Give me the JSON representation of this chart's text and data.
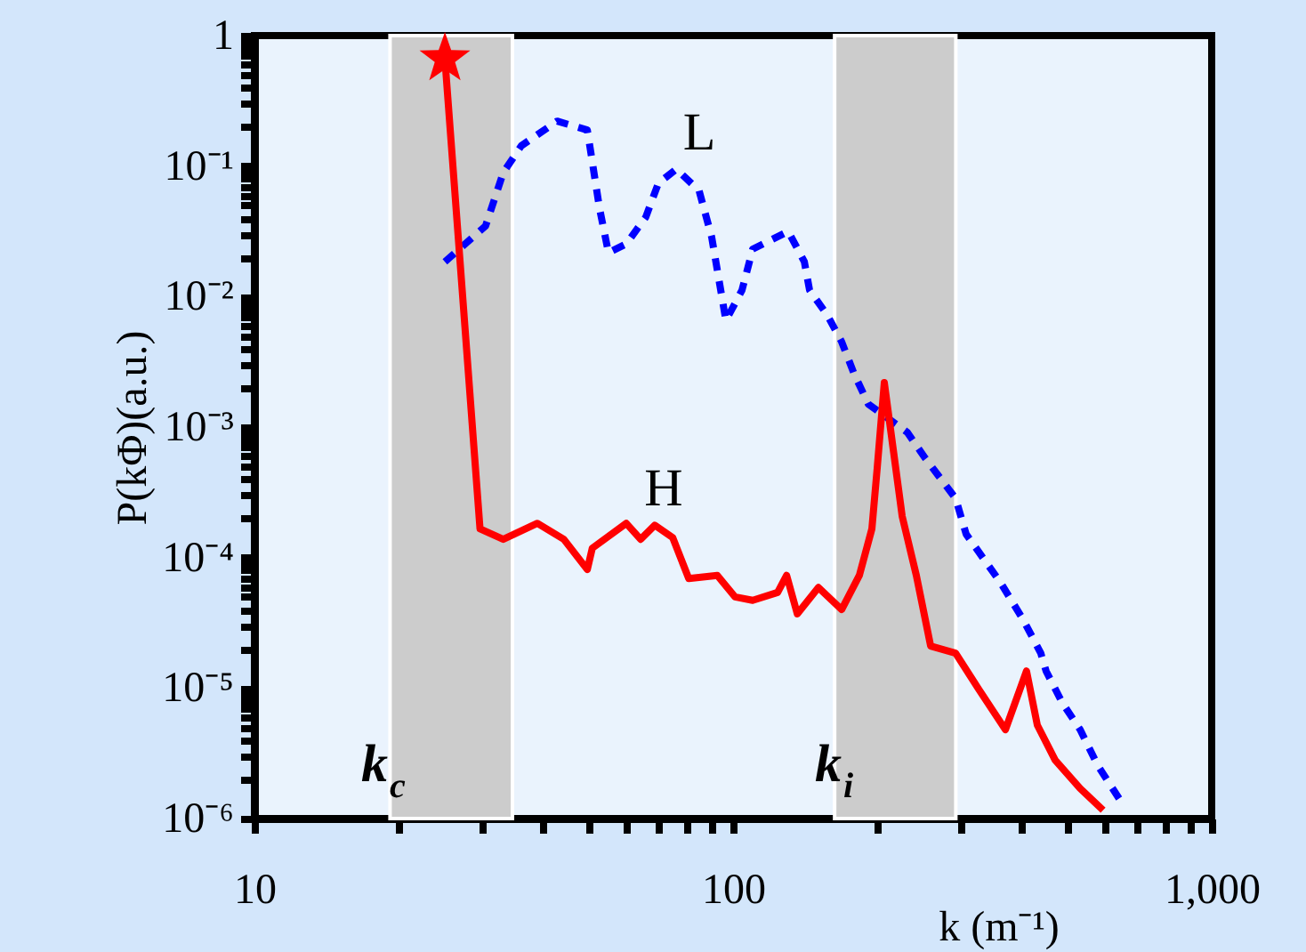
{
  "chart_data": {
    "type": "line",
    "xlabel": "k (m⁻¹)",
    "ylabel": "P(kΦ)(a.u.)",
    "log": "xy",
    "grid": false,
    "legend": false,
    "xlim": [
      10,
      1000
    ],
    "ylim": [
      1e-06,
      1
    ],
    "xticks": [
      10,
      {
        "value": 20,
        "label": null
      },
      {
        "value": 30,
        "label": null
      },
      {
        "value": 40,
        "label": null
      },
      {
        "value": 50,
        "label": null
      },
      {
        "value": 60,
        "label": null
      },
      {
        "value": 70,
        "label": null
      },
      {
        "value": 80,
        "label": null
      },
      {
        "value": 90,
        "label": null
      },
      100,
      {
        "value": 200,
        "label": null
      },
      {
        "value": 300,
        "label": null
      },
      {
        "value": 400,
        "label": null
      },
      {
        "value": 500,
        "label": null
      },
      {
        "value": 600,
        "label": null
      },
      {
        "value": 700,
        "label": null
      },
      {
        "value": 800,
        "label": null
      },
      {
        "value": 900,
        "label": null
      },
      {
        "value": 1000,
        "label": "1,000"
      }
    ],
    "yticks": [
      {
        "value": 1e-06,
        "label": "10⁻⁶"
      },
      {
        "value": 2e-06,
        "label": null
      },
      {
        "value": 3e-06,
        "label": null
      },
      {
        "value": 4e-06,
        "label": null
      },
      {
        "value": 5e-06,
        "label": null
      },
      {
        "value": 6e-06,
        "label": null
      },
      {
        "value": 7e-06,
        "label": null
      },
      {
        "value": 8e-06,
        "label": null
      },
      {
        "value": 9e-06,
        "label": null
      },
      {
        "value": 1e-05,
        "label": "10⁻⁵"
      },
      {
        "value": 2e-05,
        "label": null
      },
      {
        "value": 3e-05,
        "label": null
      },
      {
        "value": 4e-05,
        "label": null
      },
      {
        "value": 5e-05,
        "label": null
      },
      {
        "value": 6e-05,
        "label": null
      },
      {
        "value": 7e-05,
        "label": null
      },
      {
        "value": 8e-05,
        "label": null
      },
      {
        "value": 9e-05,
        "label": null
      },
      {
        "value": 0.0001,
        "label": "10⁻⁴"
      },
      {
        "value": 0.0002,
        "label": null
      },
      {
        "value": 0.0003,
        "label": null
      },
      {
        "value": 0.0004,
        "label": null
      },
      {
        "value": 0.0005,
        "label": null
      },
      {
        "value": 0.0006,
        "label": null
      },
      {
        "value": 0.0007,
        "label": null
      },
      {
        "value": 0.0008,
        "label": null
      },
      {
        "value": 0.0009,
        "label": null
      },
      {
        "value": 0.001,
        "label": "10⁻³"
      },
      {
        "value": 0.002,
        "label": null
      },
      {
        "value": 0.003,
        "label": null
      },
      {
        "value": 0.004,
        "label": null
      },
      {
        "value": 0.005,
        "label": null
      },
      {
        "value": 0.006,
        "label": null
      },
      {
        "value": 0.007,
        "label": null
      },
      {
        "value": 0.008,
        "label": null
      },
      {
        "value": 0.009,
        "label": null
      },
      {
        "value": 0.01,
        "label": "10⁻²"
      },
      {
        "value": 0.02,
        "label": null
      },
      {
        "value": 0.03,
        "label": null
      },
      {
        "value": 0.04,
        "label": null
      },
      {
        "value": 0.05,
        "label": null
      },
      {
        "value": 0.06,
        "label": null
      },
      {
        "value": 0.07,
        "label": null
      },
      {
        "value": 0.08,
        "label": null
      },
      {
        "value": 0.09,
        "label": null
      },
      {
        "value": 0.1,
        "label": "10⁻¹"
      },
      {
        "value": 0.2,
        "label": null
      },
      {
        "value": 0.3,
        "label": null
      },
      {
        "value": 0.4,
        "label": null
      },
      {
        "value": 0.5,
        "label": null
      },
      {
        "value": 0.6,
        "label": null
      },
      {
        "value": 0.7,
        "label": null
      },
      {
        "value": 0.8,
        "label": null
      },
      {
        "value": 0.9,
        "label": null
      },
      1
    ],
    "bands": [
      {
        "axis": "x",
        "from": 19.2,
        "to": 34.6,
        "color": "#cccccc"
      },
      {
        "axis": "x",
        "from": 163,
        "to": 292,
        "color": "#cccccc"
      }
    ],
    "series": [
      {
        "type": "line",
        "name": "L",
        "color": "#0000ff",
        "line_style": "dashed",
        "marker": "none",
        "x": [
          25.0,
          30.4,
          33.1,
          36.1,
          42.9,
          49.6,
          52.6,
          54.9,
          59.8,
          65.7,
          69.8,
          76.1,
          84.9,
          90.2,
          96.6,
          104.4,
          109.9,
          130.4,
          140.9,
          144.5,
          157.4,
          168.6,
          179.0,
          191.7,
          231.3,
          251.8,
          291.7,
          306.9,
          361.4,
          403.6,
          439.5,
          450.8,
          487.5,
          531,
          578,
          645.7
        ],
        "values": [
          0.0185,
          0.0347,
          0.089,
          0.143,
          0.221,
          0.189,
          0.0475,
          0.0217,
          0.0253,
          0.0406,
          0.0738,
          0.0948,
          0.065,
          0.0287,
          0.00656,
          0.0112,
          0.0231,
          0.0316,
          0.0185,
          0.0112,
          0.00721,
          0.0045,
          0.00256,
          0.0015,
          0.00091,
          0.00058,
          0.000284,
          0.000151,
          6.5e-05,
          3.35e-05,
          1.85e-05,
          1.35e-05,
          7.7e-06,
          4.8e-06,
          2.55e-06,
          1.36e-06
        ]
      },
      {
        "type": "line",
        "name": "H",
        "color": "#ff0000",
        "line_style": "solid",
        "marker": "none",
        "x": [
          25.0,
          29.6,
          33.1,
          39.0,
          44.3,
          49.6,
          50.8,
          59.8,
          64.1,
          68.6,
          74.8,
          80.8,
          92.7,
          100.9,
          109.9,
          123.9,
          129.4,
          136.2,
          150.8,
          168.6,
          183.6,
          195.0,
          200,
          207,
          225.6,
          241.5,
          258.7,
          291.7,
          326,
          370.7,
          410.3,
          432.2,
          471,
          531,
          593
        ],
        "values": [
          0.665,
          0.000166,
          0.000138,
          0.000183,
          0.000138,
          8.1e-05,
          0.000118,
          0.000183,
          0.000138,
          0.000177,
          0.000142,
          6.9e-05,
          7.3e-05,
          5e-05,
          4.7e-05,
          5.4e-05,
          7.3e-05,
          3.7e-05,
          5.9e-05,
          4e-05,
          7.3e-05,
          0.000166,
          0.00048,
          0.00219,
          0.000207,
          7.3e-05,
          2.1e-05,
          1.85e-05,
          9.8e-06,
          4.8e-06,
          1.35e-05,
          5.2e-06,
          2.8e-06,
          1.7e-06,
          1.16e-06
        ]
      },
      {
        "type": "scatter",
        "color": "#ff0000",
        "marker": "star",
        "x": [
          25.0
        ],
        "values": [
          0.665
        ]
      }
    ],
    "annotations": [
      "k$_{c}$",
      "k$_{i}$"
    ]
  }
}
